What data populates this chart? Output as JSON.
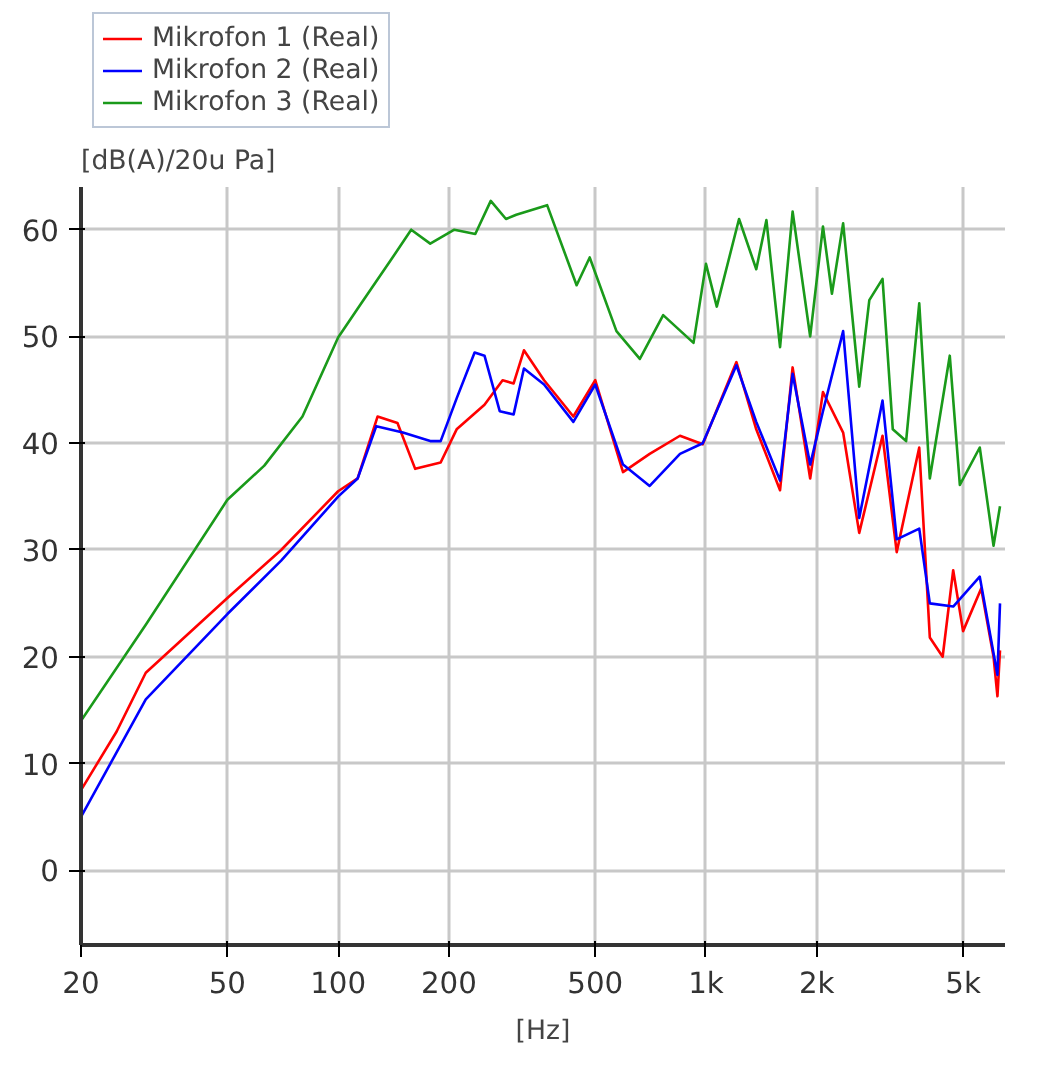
{
  "chart_data": {
    "type": "line",
    "xlabel": "[Hz]",
    "ylabel": "[dB(A)/20u Pa]",
    "log": "x",
    "grid": true,
    "legend": "top",
    "line_style": "solid",
    "xlim": [
      20,
      6500
    ],
    "ylim": [
      -7,
      64
    ],
    "xticks": [
      20,
      50,
      100,
      200,
      500,
      {
        "value": 1000,
        "label": "1k"
      },
      {
        "value": 2000,
        "label": "2k"
      },
      {
        "value": 5000,
        "label": "5k"
      }
    ],
    "yticks": [
      0,
      10,
      20,
      30,
      40,
      50,
      60
    ],
    "series": [
      {
        "name": "Mikrofon 1 (Real)",
        "color": "#ff0000",
        "x": [
          20,
          25,
          30,
          50,
          70,
          100,
          113,
          128,
          145,
          162,
          190,
          210,
          250,
          280,
          300,
          320,
          363,
          436,
          500,
          595,
          703,
          850,
          980,
          1210,
          1370,
          1590,
          1720,
          1920,
          2080,
          2360,
          2610,
          3020,
          3300,
          3800,
          4060,
          4400,
          4700,
          5000,
          5600,
          6050,
          6200,
          6300
        ],
        "values": [
          7.5,
          13,
          18.5,
          25.5,
          30,
          35.5,
          36.7,
          42.5,
          41.9,
          37.6,
          38.2,
          41.3,
          43.6,
          45.9,
          45.6,
          48.7,
          45.9,
          42.5,
          45.9,
          37.3,
          39,
          40.7,
          39.9,
          47.6,
          41.3,
          35.6,
          47.1,
          36.7,
          44.8,
          41,
          31.6,
          40.7,
          29.8,
          39.6,
          21.8,
          20,
          28.1,
          22.4,
          26.4,
          20,
          16.3,
          20.6
        ]
      },
      {
        "name": "Mikrofon 2 (Real)",
        "color": "#0000ff",
        "x": [
          20,
          30,
          50,
          70,
          100,
          113,
          127,
          150,
          178,
          190,
          210,
          235,
          250,
          275,
          300,
          320,
          363,
          436,
          500,
          595,
          703,
          850,
          980,
          1210,
          1370,
          1590,
          1720,
          1920,
          2080,
          2360,
          2610,
          3020,
          3300,
          3800,
          4060,
          4700,
          5550,
          6200,
          6300
        ],
        "values": [
          5,
          16,
          24,
          29,
          35,
          36.7,
          41.6,
          41,
          40.2,
          40.2,
          44.2,
          48.5,
          48.2,
          43,
          42.7,
          47,
          45.5,
          42,
          45.5,
          38,
          36,
          39,
          40,
          47.3,
          42,
          36.5,
          46.5,
          38,
          43,
          50.5,
          33,
          44,
          31,
          32,
          25,
          24.7,
          27.5,
          18.3,
          25
        ]
      },
      {
        "name": "Mikrofon 3 (Real)",
        "color": "#1a9a1a",
        "x": [
          20,
          30,
          50,
          63,
          80,
          100,
          115,
          140,
          158,
          178,
          207,
          236,
          260,
          286,
          305,
          370,
          445,
          483,
          571,
          661,
          765,
          925,
          1000,
          1070,
          1230,
          1370,
          1460,
          1590,
          1720,
          1920,
          2080,
          2200,
          2360,
          2610,
          2780,
          3020,
          3220,
          3500,
          3800,
          4060,
          4600,
          4900,
          5550,
          6050,
          6300
        ],
        "values": [
          14,
          23,
          34.7,
          37.9,
          42.5,
          49.9,
          53,
          57.3,
          60,
          58.7,
          60,
          59.6,
          62.7,
          61,
          61.4,
          62.3,
          54.8,
          57.4,
          50.5,
          47.9,
          52,
          49.4,
          56.8,
          52.8,
          61,
          56.3,
          60.9,
          49,
          61.7,
          50,
          60.3,
          54,
          60.6,
          45.3,
          53.4,
          55.4,
          41.3,
          40.2,
          53.1,
          36.7,
          48.2,
          36.1,
          39.6,
          30.4,
          34.1
        ]
      }
    ]
  }
}
